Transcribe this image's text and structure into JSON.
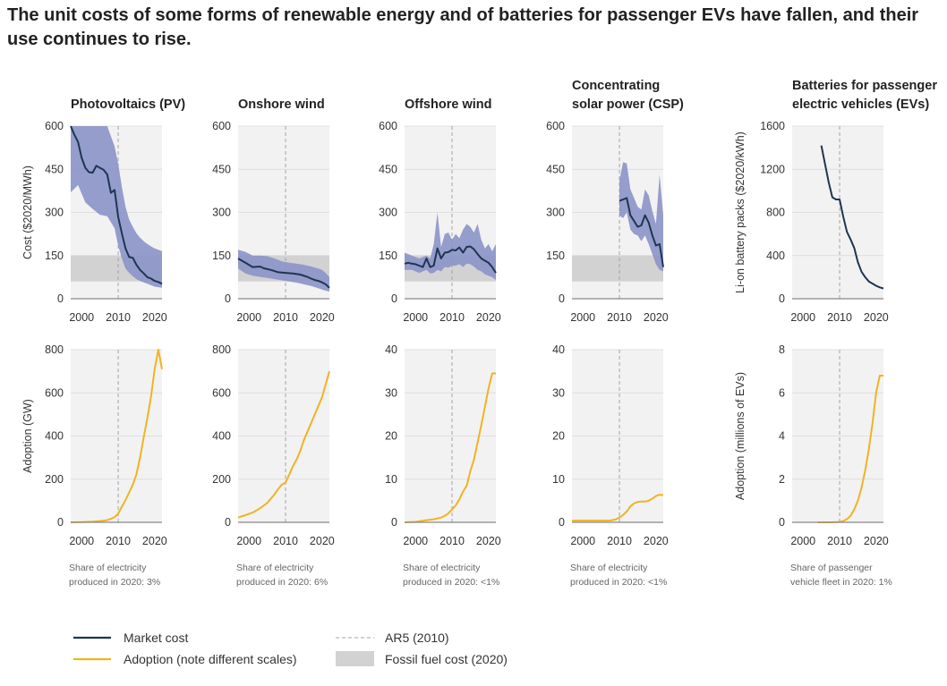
{
  "title": "The unit costs of some forms of renewable energy and of batteries for passenger EVs have fallen, and their use continues to rise.",
  "colors": {
    "market_cost": "#1f3550",
    "cost_range": "#8b93c8",
    "adoption": "#f0b323",
    "fossil": "#d2d2d2",
    "plot_bg": "#f2f2f2",
    "ar5": "#a3a3a3"
  },
  "legend": {
    "market_cost": "Market cost",
    "adoption": "Adoption (note different scales)",
    "ar5": "AR5 (2010)",
    "fossil": "Fossil fuel cost (2020)"
  },
  "chart_data": [
    {
      "id": "pv",
      "panel_title": [
        "Photovoltaics (PV)"
      ],
      "note": [
        "Share of electricity",
        "produced in 2020: 3%"
      ],
      "cost": {
        "type": "line",
        "ylabel": "Cost ($2020/MWh)",
        "xlim": [
          1997,
          2022
        ],
        "ylim": [
          0,
          600
        ],
        "yticks": [
          0,
          150,
          300,
          450,
          600
        ],
        "xticks": [
          2000,
          2010,
          2020
        ],
        "ar5_year": 2010,
        "fossil_range": [
          60,
          150
        ],
        "market_cost": {
          "x": [
            1997,
            1998,
            1999,
            2000,
            2001,
            2002,
            2003,
            2004,
            2005,
            2006,
            2007,
            2008,
            2009,
            2010,
            2011,
            2012,
            2013,
            2014,
            2015,
            2016,
            2017,
            2018,
            2019,
            2020,
            2021,
            2022
          ],
          "y": [
            600,
            570,
            545,
            490,
            455,
            440,
            438,
            462,
            455,
            448,
            432,
            368,
            378,
            285,
            228,
            175,
            145,
            142,
            118,
            100,
            88,
            75,
            70,
            62,
            58,
            52
          ]
        },
        "range": {
          "x": [
            1997,
            1999,
            2001,
            2003,
            2005,
            2007,
            2009,
            2010,
            2011,
            2012,
            2013,
            2014,
            2015,
            2016,
            2017,
            2018,
            2019,
            2020,
            2021,
            2022
          ],
          "low": [
            370,
            395,
            335,
            312,
            292,
            287,
            245,
            185,
            140,
            105,
            90,
            78,
            68,
            62,
            57,
            52,
            47,
            42,
            40,
            38
          ],
          "high": [
            600,
            600,
            600,
            600,
            600,
            600,
            530,
            470,
            390,
            320,
            275,
            250,
            228,
            212,
            200,
            190,
            182,
            175,
            170,
            165
          ]
        }
      },
      "adoption": {
        "type": "line",
        "ylabel": "Adoption (GW)",
        "xlim": [
          1997,
          2022
        ],
        "ylim": [
          0,
          800
        ],
        "yticks": [
          0,
          200,
          400,
          600,
          800
        ],
        "xticks": [
          2000,
          2010,
          2020
        ],
        "ar5_year": 2010,
        "x": [
          1997,
          2000,
          2003,
          2005,
          2007,
          2008,
          2009,
          2010,
          2011,
          2012,
          2013,
          2014,
          2015,
          2016,
          2017,
          2018,
          2019,
          2020,
          2021,
          2022
        ],
        "y": [
          0,
          1,
          3,
          6,
          10,
          16,
          24,
          40,
          72,
          103,
          138,
          175,
          222,
          300,
          395,
          485,
          585,
          710,
          860,
          710
        ]
      }
    },
    {
      "id": "onshore",
      "panel_title": [
        "Onshore wind"
      ],
      "note": [
        "Share of electricity",
        "produced in 2020: 6%"
      ],
      "cost": {
        "type": "line",
        "ylabel": "",
        "xlim": [
          1997,
          2022
        ],
        "ylim": [
          0,
          600
        ],
        "yticks": [
          0,
          150,
          300,
          450,
          600
        ],
        "xticks": [
          2000,
          2010,
          2020
        ],
        "ar5_year": 2010,
        "fossil_range": [
          60,
          150
        ],
        "market_cost": {
          "x": [
            1997,
            1999,
            2001,
            2003,
            2004,
            2006,
            2008,
            2010,
            2012,
            2014,
            2016,
            2017,
            2018,
            2019,
            2020,
            2021,
            2022
          ],
          "y": [
            140,
            125,
            110,
            112,
            106,
            100,
            92,
            90,
            88,
            84,
            76,
            70,
            65,
            62,
            57,
            50,
            38
          ]
        },
        "range": {
          "x": [
            1997,
            1999,
            2001,
            2003,
            2005,
            2007,
            2009,
            2011,
            2013,
            2015,
            2017,
            2019,
            2020,
            2021,
            2022
          ],
          "low": [
            105,
            88,
            80,
            76,
            72,
            68,
            64,
            60,
            56,
            50,
            44,
            36,
            32,
            28,
            25
          ],
          "high": [
            170,
            163,
            150,
            150,
            148,
            140,
            130,
            125,
            122,
            118,
            112,
            105,
            100,
            90,
            75
          ]
        }
      },
      "adoption": {
        "type": "line",
        "ylabel": "",
        "xlim": [
          1997,
          2022
        ],
        "ylim": [
          0,
          800
        ],
        "yticks": [
          0,
          200,
          400,
          600,
          800
        ],
        "xticks": [
          2000,
          2010,
          2020
        ],
        "ar5_year": 2010,
        "x": [
          1997,
          1999,
          2001,
          2003,
          2005,
          2006,
          2007,
          2008,
          2009,
          2010,
          2011,
          2012,
          2013,
          2014,
          2015,
          2016,
          2017,
          2018,
          2019,
          2020,
          2021,
          2022
        ],
        "y": [
          22,
          33,
          45,
          65,
          90,
          110,
          130,
          155,
          175,
          185,
          220,
          260,
          290,
          330,
          380,
          420,
          460,
          500,
          540,
          580,
          640,
          700
        ]
      }
    },
    {
      "id": "offshore",
      "panel_title": [
        "Offshore wind"
      ],
      "note": [
        "Share of electricity",
        "produced in 2020: <1%"
      ],
      "cost": {
        "type": "line",
        "ylabel": "",
        "xlim": [
          1997,
          2022
        ],
        "ylim": [
          0,
          600
        ],
        "yticks": [
          0,
          150,
          300,
          450,
          600
        ],
        "xticks": [
          2000,
          2010,
          2020
        ],
        "ar5_year": 2010,
        "fossil_range": [
          60,
          150
        ],
        "market_cost": {
          "x": [
            1997,
            1998,
            1999,
            2000,
            2001,
            2002,
            2003,
            2004,
            2005,
            2006,
            2007,
            2008,
            2009,
            2010,
            2011,
            2012,
            2013,
            2014,
            2015,
            2016,
            2017,
            2018,
            2019,
            2020,
            2021,
            2022
          ],
          "y": [
            122,
            125,
            122,
            120,
            115,
            110,
            140,
            110,
            115,
            175,
            140,
            160,
            162,
            170,
            168,
            178,
            160,
            180,
            182,
            172,
            155,
            140,
            132,
            125,
            110,
            90
          ]
        },
        "range": {
          "x": [
            1997,
            1999,
            2001,
            2003,
            2004,
            2005,
            2006,
            2007,
            2008,
            2009,
            2010,
            2011,
            2012,
            2013,
            2014,
            2015,
            2016,
            2017,
            2018,
            2019,
            2020,
            2021,
            2022
          ],
          "low": [
            100,
            100,
            90,
            100,
            88,
            90,
            100,
            95,
            110,
            108,
            115,
            115,
            120,
            110,
            122,
            120,
            112,
            100,
            95,
            85,
            80,
            75,
            65
          ],
          "high": [
            160,
            150,
            140,
            150,
            140,
            190,
            300,
            180,
            225,
            230,
            205,
            225,
            210,
            240,
            260,
            250,
            230,
            260,
            205,
            175,
            190,
            165,
            190
          ]
        }
      },
      "adoption": {
        "type": "line",
        "ylabel": "",
        "xlim": [
          1997,
          2022
        ],
        "ylim": [
          0,
          40
        ],
        "yticks": [
          0,
          10,
          20,
          30,
          40
        ],
        "xticks": [
          2000,
          2010,
          2020
        ],
        "ar5_year": 2010,
        "x": [
          1997,
          2000,
          2003,
          2005,
          2007,
          2008,
          2009,
          2010,
          2011,
          2012,
          2013,
          2014,
          2015,
          2016,
          2017,
          2018,
          2019,
          2020,
          2021,
          2022
        ],
        "y": [
          0,
          0.1,
          0.5,
          0.7,
          1.1,
          1.5,
          2.1,
          3.0,
          3.9,
          5.3,
          7.1,
          8.5,
          11.8,
          14.5,
          18.5,
          22.5,
          26.8,
          31.0,
          34.5,
          34.5
        ]
      }
    },
    {
      "id": "csp",
      "panel_title": [
        "Concentrating",
        "solar power (CSP)"
      ],
      "note": [
        "Share of electricity",
        "produced in 2020: <1%"
      ],
      "cost": {
        "type": "line",
        "ylabel": "",
        "xlim": [
          1997,
          2022
        ],
        "ylim": [
          0,
          600
        ],
        "yticks": [
          0,
          150,
          300,
          450,
          600
        ],
        "xticks": [
          2000,
          2010,
          2020
        ],
        "ar5_year": 2010,
        "fossil_range": [
          60,
          150
        ],
        "market_cost": {
          "x": [
            2010,
            2011,
            2012,
            2013,
            2014,
            2015,
            2016,
            2017,
            2018,
            2019,
            2020,
            2021,
            2022
          ],
          "y": [
            340,
            345,
            350,
            290,
            270,
            250,
            255,
            290,
            265,
            220,
            185,
            190,
            110
          ]
        },
        "range": {
          "x": [
            2010,
            2011,
            2012,
            2013,
            2014,
            2015,
            2016,
            2017,
            2018,
            2019,
            2020,
            2021,
            2022
          ],
          "low": [
            290,
            280,
            300,
            240,
            225,
            220,
            200,
            220,
            190,
            155,
            120,
            100,
            95
          ],
          "high": [
            410,
            475,
            470,
            380,
            350,
            320,
            310,
            380,
            360,
            305,
            260,
            430,
            290
          ]
        }
      },
      "adoption": {
        "type": "line",
        "ylabel": "",
        "xlim": [
          1997,
          2022
        ],
        "ylim": [
          0,
          40
        ],
        "yticks": [
          0,
          10,
          20,
          30,
          40
        ],
        "xticks": [
          2000,
          2010,
          2020
        ],
        "ar5_year": 2010,
        "x": [
          1997,
          2000,
          2003,
          2005,
          2006,
          2007,
          2008,
          2009,
          2010,
          2011,
          2012,
          2013,
          2014,
          2015,
          2016,
          2017,
          2018,
          2019,
          2020,
          2021,
          2022
        ],
        "y": [
          0.4,
          0.4,
          0.4,
          0.4,
          0.4,
          0.4,
          0.5,
          0.7,
          1.1,
          1.7,
          2.5,
          3.7,
          4.4,
          4.7,
          4.8,
          4.8,
          5.0,
          5.5,
          6.1,
          6.4,
          6.3
        ]
      }
    },
    {
      "id": "ev",
      "panel_title": [
        "Batteries for passenger",
        "electric vehicles (EVs)"
      ],
      "note": [
        "Share of passenger",
        "vehicle fleet in 2020: 1%"
      ],
      "cost": {
        "type": "line",
        "ylabel": "Li-on battery packs ($2020/kWh)",
        "xlim": [
          1997,
          2022
        ],
        "ylim": [
          0,
          1600
        ],
        "yticks": [
          0,
          400,
          800,
          1200,
          1600
        ],
        "xticks": [
          2000,
          2010,
          2020
        ],
        "ar5_year": 2010,
        "fossil_range": null,
        "market_cost": {
          "x": [
            2005,
            2006,
            2007,
            2008,
            2009,
            2010,
            2011,
            2012,
            2013,
            2014,
            2015,
            2016,
            2017,
            2018,
            2019,
            2020,
            2021,
            2022
          ],
          "y": [
            1420,
            1250,
            1080,
            940,
            920,
            920,
            760,
            620,
            550,
            470,
            340,
            250,
            200,
            160,
            140,
            120,
            105,
            95
          ]
        },
        "range": null
      },
      "adoption": {
        "type": "line",
        "ylabel": "Adoption (millions of EVs)",
        "xlim": [
          1997,
          2022
        ],
        "ylim": [
          0,
          8
        ],
        "yticks": [
          0,
          2,
          4,
          6,
          8
        ],
        "xticks": [
          2000,
          2010,
          2020
        ],
        "ar5_year": 2010,
        "x": [
          2004,
          2006,
          2008,
          2009,
          2010,
          2011,
          2012,
          2013,
          2014,
          2015,
          2016,
          2017,
          2018,
          2019,
          2020,
          2021,
          2022
        ],
        "y": [
          0,
          0,
          0,
          0.01,
          0.02,
          0.06,
          0.15,
          0.3,
          0.6,
          1.0,
          1.6,
          2.4,
          3.4,
          4.6,
          6.0,
          6.8,
          6.8
        ]
      }
    }
  ]
}
